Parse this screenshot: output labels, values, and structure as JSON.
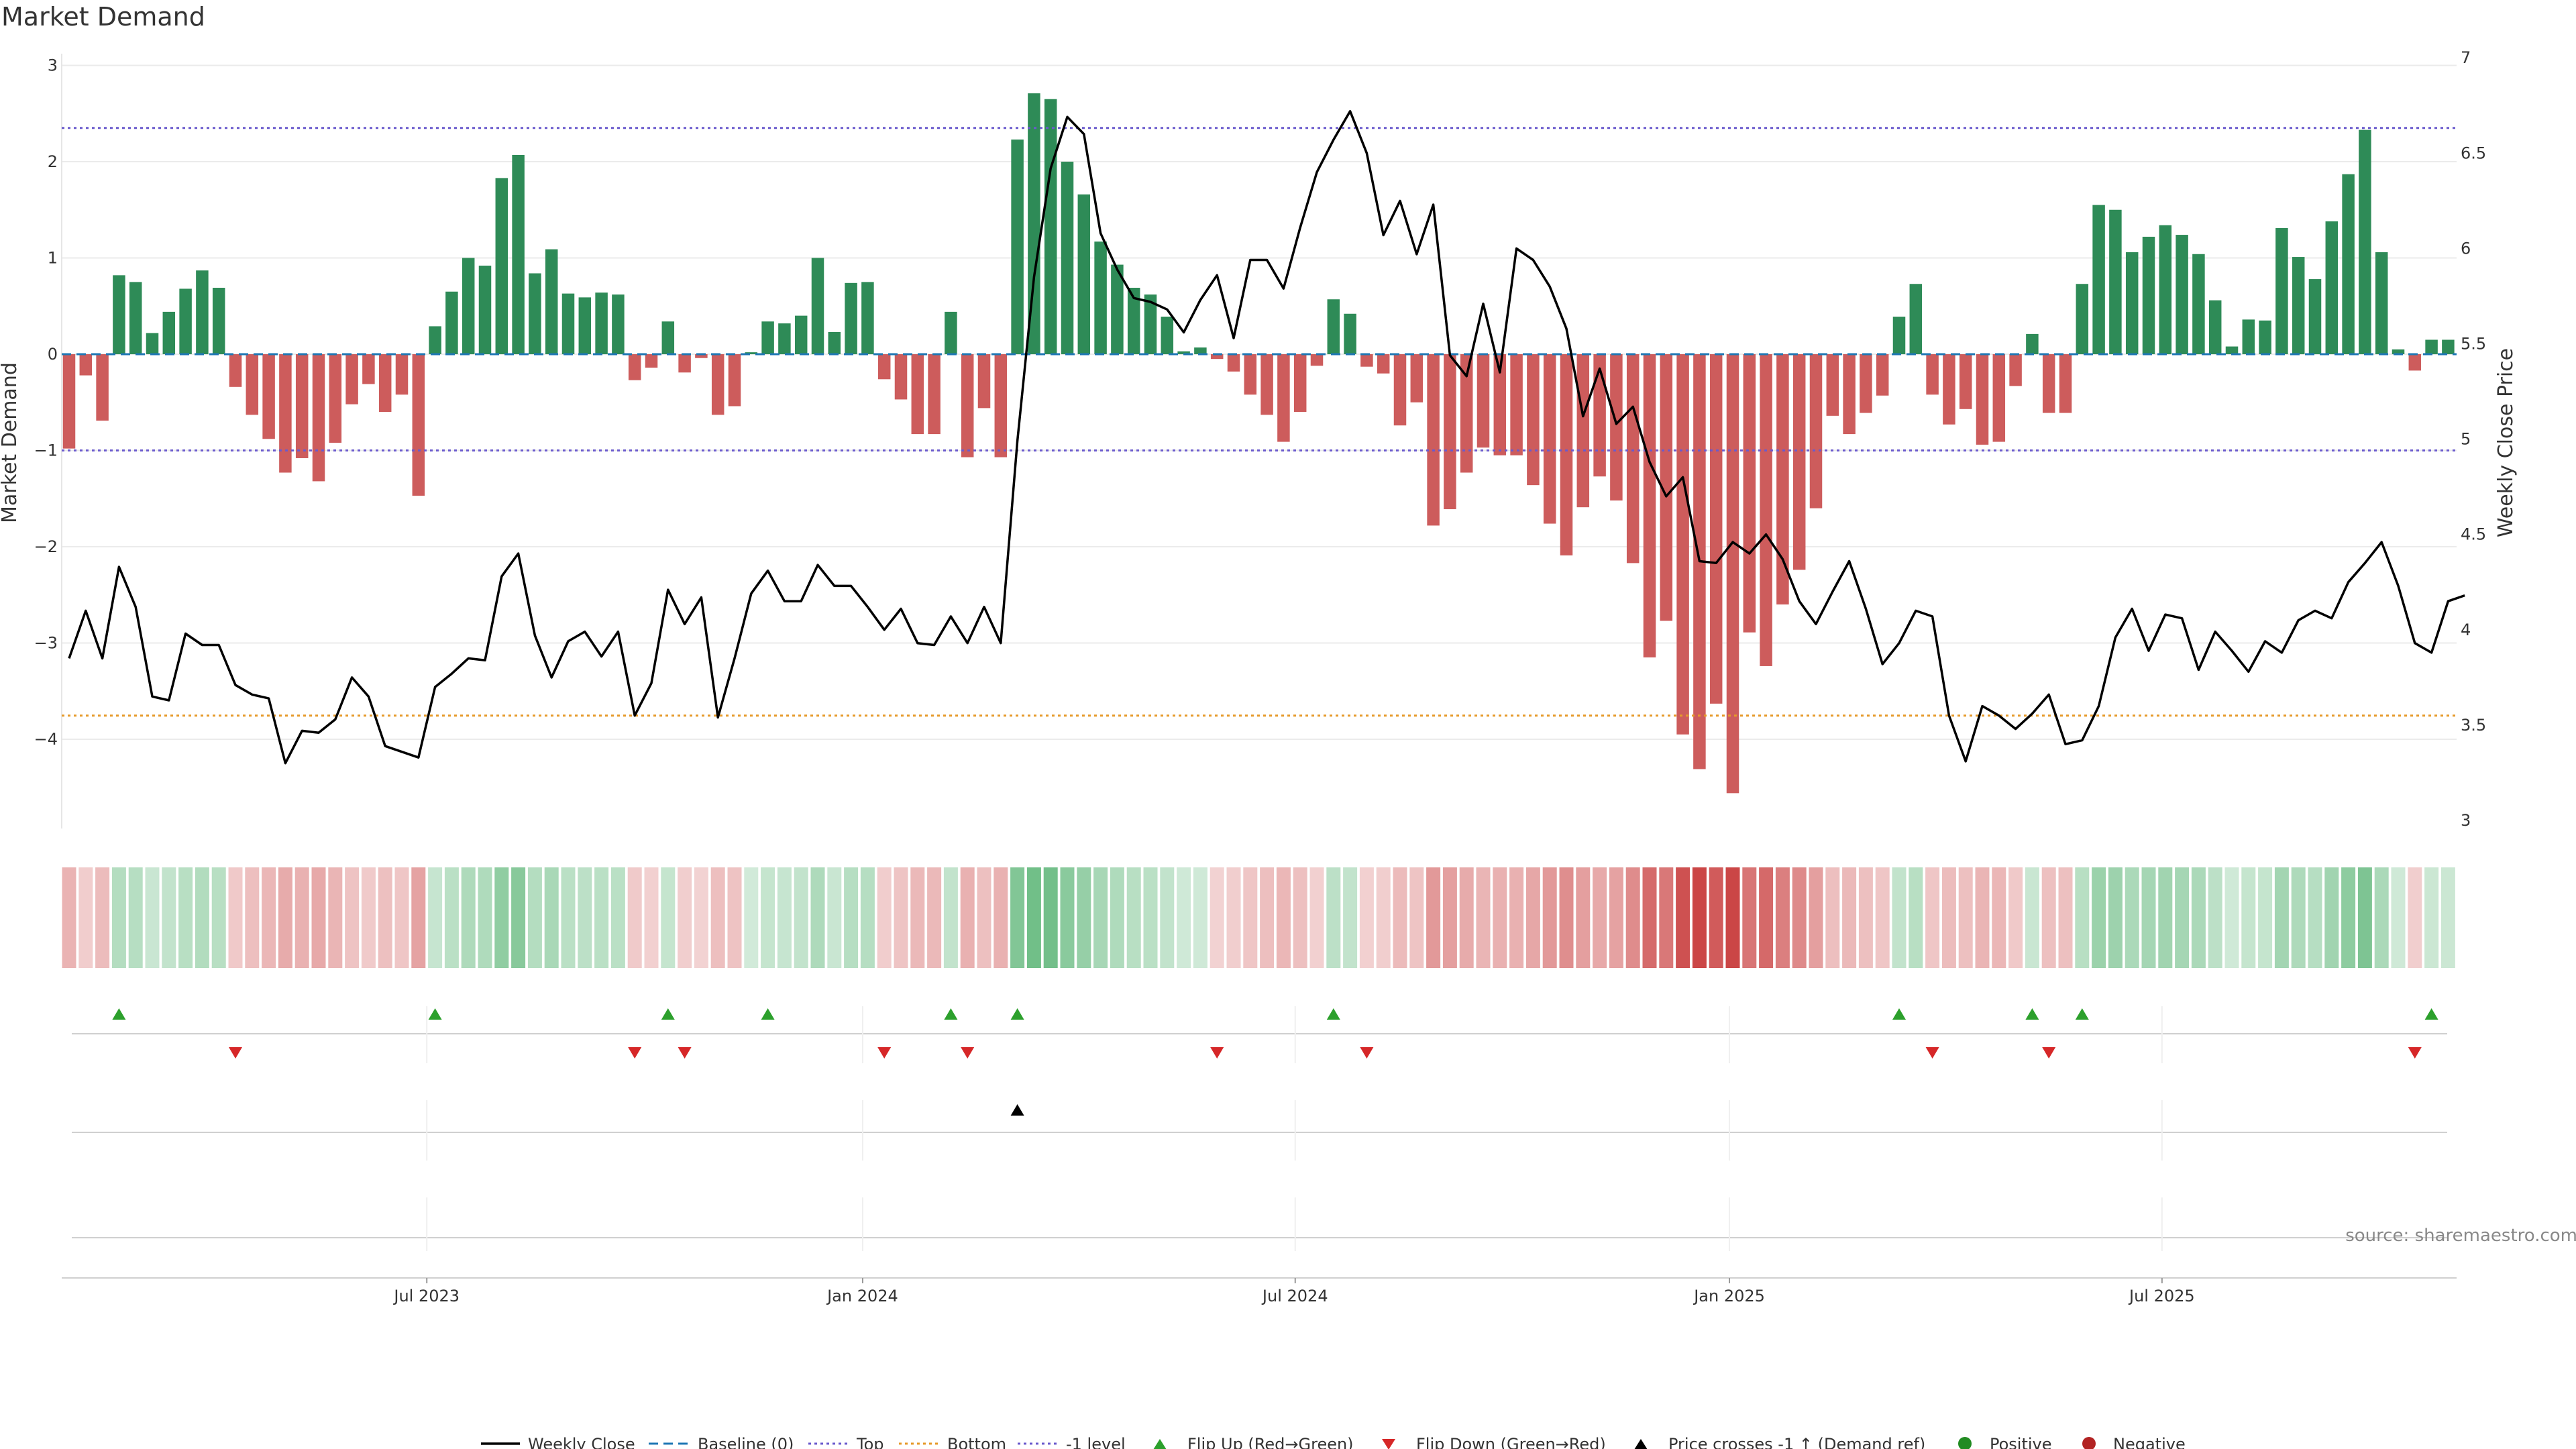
{
  "chart_data": {
    "type": "bar",
    "title": "Market Demand",
    "ylabel_left": "Market Demand",
    "ylabel_right": "Weekly Close Price",
    "ylim_left": [
      -4.9,
      3.1
    ],
    "ylim_right": [
      2.95,
      7.0
    ],
    "yticks_left": [
      "3",
      "2",
      "1",
      "0",
      "−1",
      "−2",
      "−3",
      "−4"
    ],
    "yticks_right": [
      "7",
      "6.5",
      "6",
      "5.5",
      "5",
      "4.5",
      "4",
      "3.5",
      "3"
    ],
    "xtick_labels": [
      "Jul 2023",
      "Jan 2024",
      "Jul 2024",
      "Jan 2025",
      "Jul 2025"
    ],
    "xtick_weeks": [
      21.5,
      47.7,
      73.7,
      99.8,
      125.8
    ],
    "weeks": 144,
    "reference_lines": {
      "top": 2.35,
      "bottom_price": 3.55,
      "minus_one_level": -1
    },
    "demand": [
      -0.98,
      -0.22,
      -0.69,
      0.82,
      0.75,
      0.22,
      0.44,
      0.68,
      0.87,
      0.69,
      -0.34,
      -0.63,
      -0.88,
      -1.23,
      -1.08,
      -1.32,
      -0.92,
      -0.52,
      -0.31,
      -0.6,
      -0.42,
      -1.47,
      0.29,
      0.65,
      1.0,
      0.92,
      1.83,
      2.07,
      0.84,
      1.09,
      0.63,
      0.59,
      0.64,
      0.62,
      -0.27,
      -0.14,
      0.34,
      -0.19,
      -0.04,
      -0.63,
      -0.54,
      0.02,
      0.34,
      0.32,
      0.4,
      1.0,
      0.23,
      0.74,
      0.75,
      -0.26,
      -0.47,
      -0.83,
      -0.83,
      0.44,
      -1.07,
      -0.56,
      -1.07,
      2.23,
      2.71,
      2.65,
      2.0,
      1.66,
      1.17,
      0.93,
      0.69,
      0.62,
      0.39,
      0.03,
      0.07,
      -0.05,
      -0.18,
      -0.42,
      -0.63,
      -0.91,
      -0.6,
      -0.12,
      0.57,
      0.42,
      -0.13,
      -0.2,
      -0.74,
      -0.5,
      -1.78,
      -1.61,
      -1.23,
      -0.97,
      -1.05,
      -1.05,
      -1.36,
      -1.76,
      -2.09,
      -1.59,
      -1.27,
      -1.52,
      -2.17,
      -3.15,
      -2.77,
      -3.95,
      -4.31,
      -3.63,
      -4.56,
      -2.89,
      -3.24,
      -2.6,
      -2.24,
      -1.6,
      -0.64,
      -0.83,
      -0.61,
      -0.43,
      0.39,
      0.73,
      -0.42,
      -0.73,
      -0.57,
      -0.94,
      -0.91,
      -0.33,
      0.21,
      -0.61,
      -0.61,
      0.73,
      1.55,
      1.5,
      1.06,
      1.22,
      1.34,
      1.24,
      1.04,
      0.56,
      0.08,
      0.36,
      0.35,
      1.31,
      1.01,
      0.78,
      1.38,
      1.87,
      2.33,
      1.06,
      0.05,
      -0.17,
      0.15,
      0.15
    ],
    "price": [
      3.85,
      4.1,
      3.85,
      4.33,
      4.12,
      3.65,
      3.63,
      3.98,
      3.92,
      3.92,
      3.71,
      3.66,
      3.64,
      3.3,
      3.47,
      3.46,
      3.53,
      3.75,
      3.65,
      3.39,
      3.36,
      3.33,
      3.7,
      3.77,
      3.85,
      3.84,
      4.28,
      4.4,
      3.97,
      3.75,
      3.94,
      3.99,
      3.86,
      3.99,
      3.55,
      3.72,
      4.21,
      4.03,
      4.17,
      3.54,
      3.85,
      4.19,
      4.31,
      4.15,
      4.15,
      4.34,
      4.23,
      4.23,
      4.12,
      4.0,
      4.11,
      3.93,
      3.92,
      4.07,
      3.93,
      4.12,
      3.93,
      4.99,
      5.85,
      6.42,
      6.69,
      6.6,
      6.08,
      5.89,
      5.74,
      5.72,
      5.68,
      5.56,
      5.73,
      5.86,
      5.53,
      5.94,
      5.94,
      5.79,
      6.11,
      6.4,
      6.57,
      6.72,
      6.5,
      6.07,
      6.25,
      5.97,
      6.23,
      5.44,
      5.33,
      5.71,
      5.35,
      6.0,
      5.94,
      5.8,
      5.58,
      5.12,
      5.37,
      5.08,
      5.17,
      4.88,
      4.7,
      4.8,
      4.36,
      4.35,
      4.46,
      4.4,
      4.5,
      4.37,
      4.15,
      4.03,
      4.2,
      4.36,
      4.11,
      3.82,
      3.93,
      4.1,
      4.07,
      3.55,
      3.31,
      3.6,
      3.55,
      3.48,
      3.56,
      3.66,
      3.4,
      3.42,
      3.6,
      3.96,
      4.11,
      3.89,
      4.08,
      4.06,
      3.79,
      3.99,
      3.89,
      3.78,
      3.94,
      3.88,
      4.05,
      4.1,
      4.06,
      4.25,
      4.35,
      4.46,
      4.23,
      3.93,
      3.88,
      4.15,
      4.18
    ],
    "flip_up_weeks": [
      3,
      22,
      36,
      42,
      53,
      57,
      76,
      110,
      118,
      121,
      142
    ],
    "flip_down_weeks": [
      10,
      34,
      37,
      49,
      54,
      69,
      78,
      112,
      119,
      141
    ],
    "price_cross_up_weeks": [
      57
    ],
    "legend": [
      "Weekly Close",
      "Baseline (0)",
      "Top",
      "Bottom",
      "-1 level",
      "Flip Up (Red→Green)",
      "Flip Down (Green→Red)",
      "Price crosses -1 ↑ (Demand ref)",
      "Positive",
      "Negative"
    ],
    "source": "source: sharemaestro.com",
    "colors": {
      "positive_bar": "#2e8b57",
      "negative_bar": "#cd5c5c",
      "price_line": "#000000",
      "top_line": "#6a5acd",
      "bottom_line": "#e69a2a",
      "minus_one_line": "#6a5acd",
      "baseline": "#1f77b4",
      "flip_up": "#2ca02c",
      "flip_down": "#d62728",
      "positive_dot": "#228b22",
      "negative_dot": "#b22222"
    }
  }
}
